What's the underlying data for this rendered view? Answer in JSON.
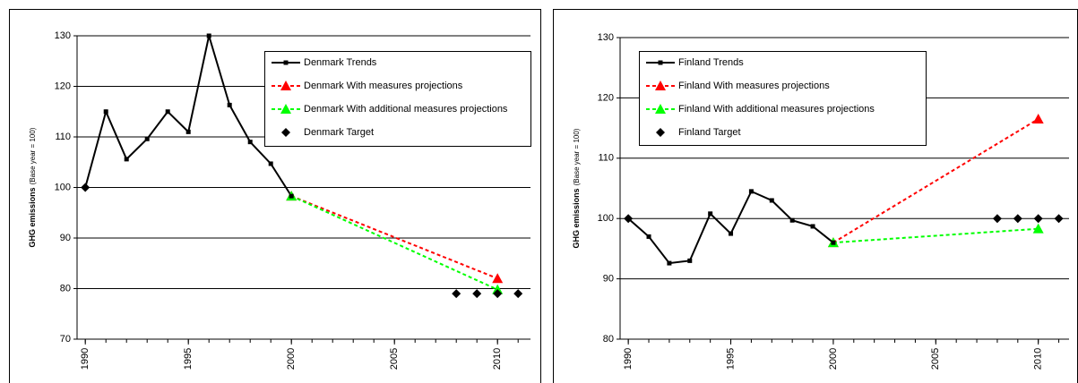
{
  "chart_data": [
    {
      "type": "line",
      "y_label": "GHG emissions",
      "y_label_note": "(Base year = 100)",
      "xlim": [
        1989.6,
        2011.6
      ],
      "xticks": [
        1990,
        1995,
        2000,
        2005,
        2010
      ],
      "ylim": [
        70,
        130
      ],
      "yticks": [
        70,
        80,
        90,
        100,
        110,
        120,
        130
      ],
      "grid": true,
      "legend": "top-right",
      "series": [
        {
          "name": "Denmark Trends",
          "color": "#000000",
          "marker": "square",
          "dash": "solid",
          "x": [
            1990,
            1991,
            1992,
            1993,
            1994,
            1995,
            1996,
            1997,
            1998,
            1999,
            2000
          ],
          "values": [
            100,
            115,
            105.6,
            109.6,
            115,
            111,
            130,
            116.3,
            109,
            104.7,
            98.3
          ]
        },
        {
          "name": "Denmark With measures projections",
          "color": "#ff0000",
          "marker": "triangle",
          "dash": "dashed",
          "x": [
            2000,
            2010
          ],
          "values": [
            98.3,
            82
          ]
        },
        {
          "name": "Denmark With additional measures projections",
          "color": "#00ff00",
          "marker": "triangle",
          "dash": "dashed",
          "x": [
            2000,
            2010
          ],
          "values": [
            98.3,
            79.8
          ]
        },
        {
          "name": "Denmark Target",
          "color": "#000000",
          "marker": "diamond",
          "dash": "none",
          "x": [
            1990,
            2008,
            2009,
            2010,
            2011
          ],
          "values": [
            100,
            79,
            79,
            79,
            79
          ]
        }
      ]
    },
    {
      "type": "line",
      "y_label": "GHG emissions",
      "y_label_note": "(Base year = 100)",
      "xlim": [
        1989.6,
        2011.5
      ],
      "xticks": [
        1990,
        1995,
        2000,
        2005,
        2010
      ],
      "ylim": [
        80,
        130
      ],
      "yticks": [
        80,
        90,
        100,
        110,
        120,
        130
      ],
      "grid": true,
      "legend": "top-left",
      "series": [
        {
          "name": "Finland Trends",
          "color": "#000000",
          "marker": "square",
          "dash": "solid",
          "x": [
            1990,
            1991,
            1992,
            1993,
            1994,
            1995,
            1996,
            1997,
            1998,
            1999,
            2000
          ],
          "values": [
            100,
            97,
            92.6,
            93,
            100.8,
            97.5,
            104.5,
            103,
            99.7,
            98.7,
            96
          ]
        },
        {
          "name": "Finland With measures projections",
          "color": "#ff0000",
          "marker": "triangle",
          "dash": "dashed",
          "x": [
            2000,
            2010
          ],
          "values": [
            96,
            116.5
          ]
        },
        {
          "name": "Finland With additional measures projections",
          "color": "#00ff00",
          "marker": "triangle",
          "dash": "dashed",
          "x": [
            2000,
            2010
          ],
          "values": [
            96,
            98.3
          ]
        },
        {
          "name": "Finland Target",
          "color": "#000000",
          "marker": "diamond",
          "dash": "none",
          "x": [
            1990,
            2008,
            2009,
            2010,
            2011
          ],
          "values": [
            100,
            100,
            100,
            100,
            100
          ]
        }
      ]
    }
  ]
}
